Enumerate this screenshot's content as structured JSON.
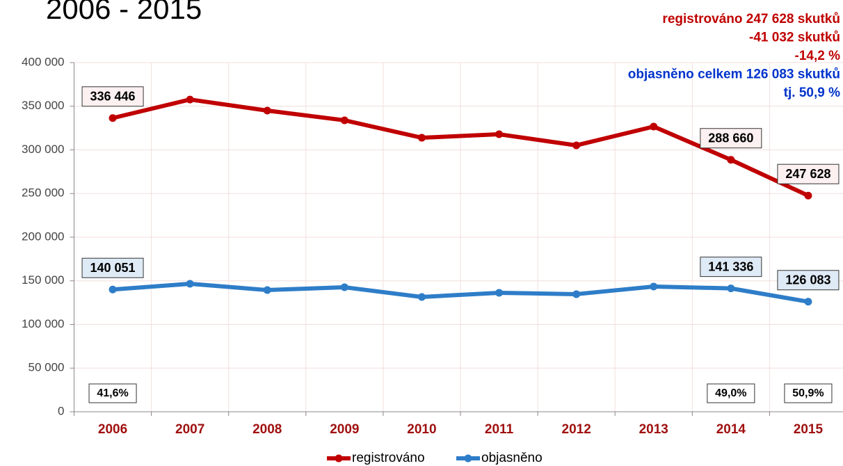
{
  "chart_data": {
    "type": "line",
    "title": "2006 - 2015",
    "annotations": [
      {
        "text": "registrováno 247 628 skutků",
        "color": "#c00000"
      },
      {
        "text": "-41 032 skutků",
        "color": "#c00000"
      },
      {
        "text": "-14,2 %",
        "color": "#c00000"
      },
      {
        "text": "objasněno celkem 126 083 skutků",
        "color": "#0033cc"
      },
      {
        "text": "tj. 50,9 %",
        "color": "#0033cc"
      }
    ],
    "categories": [
      "2006",
      "2007",
      "2008",
      "2009",
      "2010",
      "2011",
      "2012",
      "2013",
      "2014",
      "2015"
    ],
    "series": [
      {
        "name": "registrováno",
        "color": "#c00000",
        "values": [
          336446,
          357700,
          345000,
          333900,
          313900,
          317900,
          305200,
          326700,
          288660,
          247628
        ],
        "value_labels": [
          "336 446",
          null,
          null,
          null,
          null,
          null,
          null,
          null,
          "288 660",
          "247 628"
        ]
      },
      {
        "name": "objasněno",
        "color": "#2e7dc8",
        "values": [
          140051,
          146600,
          139400,
          142600,
          131500,
          136300,
          134700,
          143400,
          141336,
          126083
        ],
        "value_labels": [
          "140 051",
          null,
          null,
          null,
          null,
          null,
          null,
          null,
          "141 336",
          "126 083"
        ]
      }
    ],
    "ratio_labels": [
      "41,6%",
      null,
      null,
      null,
      null,
      null,
      null,
      null,
      "49,0%",
      "50,9%"
    ],
    "ylim": [
      0,
      400000
    ],
    "yticks": [
      0,
      {
        "value": 50000,
        "label": "50 000"
      },
      {
        "value": 100000,
        "label": "100 000"
      },
      {
        "value": 150000,
        "label": "150 000"
      },
      {
        "value": 200000,
        "label": "200 000"
      },
      {
        "value": 250000,
        "label": "250 000"
      },
      {
        "value": 300000,
        "label": "300 000"
      },
      {
        "value": 350000,
        "label": "350 000"
      },
      {
        "value": 400000,
        "label": "400 000"
      }
    ],
    "grid": true,
    "legend": "bottom"
  }
}
